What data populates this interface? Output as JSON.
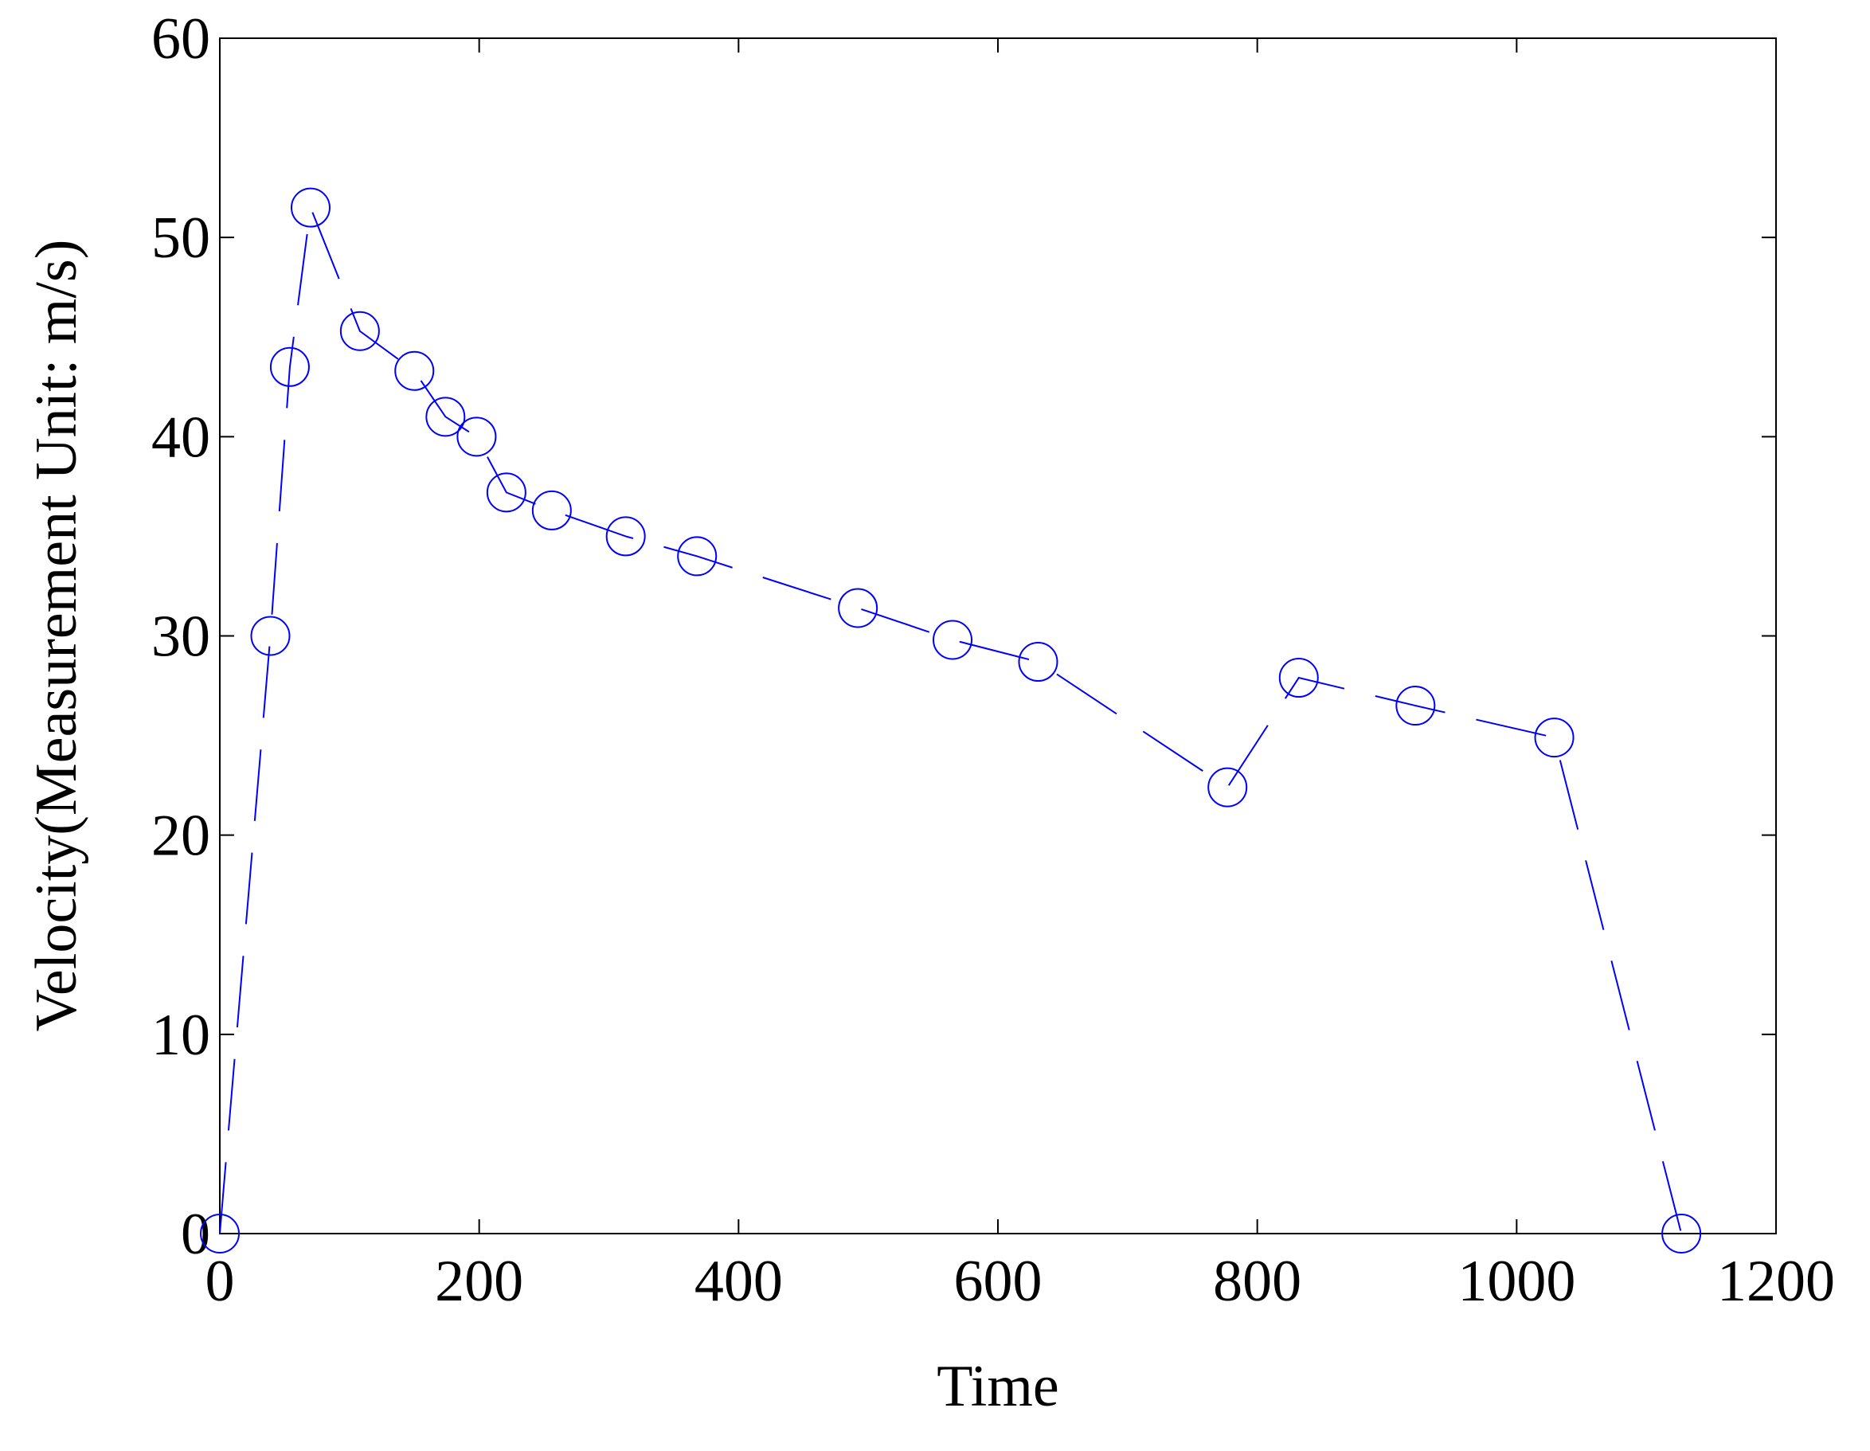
{
  "chart_data": {
    "type": "line",
    "xlabel": "Time",
    "ylabel": "Velocity(Measurement Unit: m/s)",
    "x": [
      0,
      39,
      54,
      70,
      108,
      150,
      174,
      198,
      221,
      256,
      313,
      368,
      492,
      565,
      631,
      777,
      832,
      922,
      1029,
      1127
    ],
    "series": [
      {
        "color": "#0000ff",
        "marker": "circle",
        "linestyle": "dashed",
        "values": [
          0,
          30,
          43.5,
          51.5,
          45.3,
          43.3,
          41,
          40,
          37.2,
          36.3,
          35,
          34,
          31.4,
          29.8,
          28.7,
          22.4,
          27.9,
          26.5,
          24.9,
          0
        ]
      }
    ],
    "xlim": [
      0,
      1200
    ],
    "xticks": [
      0,
      200,
      400,
      600,
      800,
      1000,
      1200
    ],
    "ylim": [
      0,
      60
    ],
    "yticks": [
      0,
      10,
      20,
      30,
      40,
      50,
      60
    ]
  }
}
